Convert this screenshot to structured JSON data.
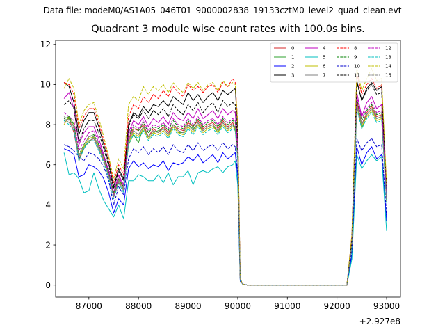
{
  "suptitle": "Data file: modeM0/AS1A05_046T01_9000002838_19133cztM0_level2_quad_clean.evt",
  "chart_data": {
    "type": "line",
    "title": "Quadrant 3 module wise count rates with 100.0s bins.",
    "xlabel": "",
    "ylabel": "",
    "x_offset_label": "+2.927e8",
    "xlim": [
      86330,
      93280
    ],
    "ylim": [
      -0.6,
      12.2
    ],
    "xticks": [
      87000,
      88000,
      89000,
      90000,
      91000,
      92000,
      93000
    ],
    "yticks": [
      0,
      2,
      4,
      6,
      8,
      10,
      12
    ],
    "legend_position": "top-right",
    "x": [
      86500,
      86600,
      86700,
      86800,
      86900,
      87000,
      87100,
      87200,
      87300,
      87400,
      87500,
      87600,
      87700,
      87800,
      87900,
      88000,
      88100,
      88200,
      88300,
      88400,
      88500,
      88600,
      88700,
      88800,
      88900,
      89000,
      89100,
      89200,
      89300,
      89400,
      89500,
      89600,
      89700,
      89800,
      89900,
      89950,
      90000,
      90050,
      90100,
      90200,
      90300,
      90400,
      90500,
      90600,
      90700,
      90800,
      90900,
      91000,
      91100,
      91200,
      91300,
      91400,
      91500,
      91600,
      91700,
      91800,
      91900,
      92000,
      92100,
      92200,
      92300,
      92400,
      92500,
      92600,
      92700,
      92800,
      92900,
      93000
    ],
    "series": [
      {
        "name": "0",
        "color": "#d62728",
        "dash": "solid",
        "values": [
          8.1,
          8.3,
          7.6,
          6.3,
          6.8,
          7.2,
          7.3,
          6.8,
          6.2,
          5.6,
          4.4,
          5.1,
          4.8,
          7.3,
          7.8,
          7.7,
          8.0,
          7.4,
          7.8,
          7.6,
          7.9,
          7.6,
          8.0,
          7.8,
          7.7,
          8.1,
          7.9,
          8.2,
          7.8,
          8.0,
          8.1,
          7.8,
          8.2,
          7.9,
          8.1,
          7.8,
          6.5,
          0.3,
          0.05,
          0.0,
          0.0,
          0.0,
          0.0,
          0.0,
          0.0,
          0.0,
          0.0,
          0.0,
          0.0,
          0.0,
          0.0,
          0.0,
          0.0,
          0.0,
          0.0,
          0.0,
          0.0,
          0.0,
          0.0,
          0.0,
          2.0,
          9.2,
          8.0,
          8.6,
          8.9,
          8.4,
          8.5,
          4.3
        ]
      },
      {
        "name": "1",
        "color": "#2ca02c",
        "dash": "solid",
        "values": [
          8.2,
          8.3,
          7.9,
          6.2,
          6.9,
          7.1,
          7.4,
          6.9,
          6.3,
          5.5,
          4.5,
          5.2,
          4.9,
          7.0,
          7.5,
          7.1,
          7.9,
          7.3,
          7.6,
          7.7,
          7.8,
          7.5,
          7.9,
          7.6,
          7.6,
          8.0,
          7.8,
          8.0,
          7.7,
          7.9,
          8.0,
          7.6,
          8.1,
          7.8,
          8.0,
          7.7,
          6.4,
          0.3,
          0.05,
          0.0,
          0.0,
          0.0,
          0.0,
          0.0,
          0.0,
          0.0,
          0.0,
          0.0,
          0.0,
          0.0,
          0.0,
          0.0,
          0.0,
          0.0,
          0.0,
          0.0,
          0.0,
          0.0,
          0.0,
          0.0,
          2.0,
          9.0,
          7.8,
          8.5,
          8.8,
          8.3,
          8.4,
          4.2
        ]
      },
      {
        "name": "2",
        "color": "#0000ff",
        "dash": "solid",
        "values": [
          6.8,
          6.7,
          6.5,
          5.4,
          5.5,
          6.0,
          5.9,
          5.7,
          5.3,
          4.6,
          3.6,
          4.3,
          4.0,
          5.8,
          6.2,
          5.9,
          6.1,
          5.8,
          6.0,
          5.9,
          6.2,
          5.7,
          6.1,
          6.0,
          6.1,
          6.4,
          6.2,
          6.5,
          6.1,
          6.3,
          6.5,
          6.1,
          6.6,
          6.3,
          6.5,
          6.6,
          5.4,
          0.2,
          0.05,
          0.0,
          0.0,
          0.0,
          0.0,
          0.0,
          0.0,
          0.0,
          0.0,
          0.0,
          0.0,
          0.0,
          0.0,
          0.0,
          0.0,
          0.0,
          0.0,
          0.0,
          0.0,
          0.0,
          0.0,
          0.0,
          1.5,
          6.9,
          6.0,
          6.6,
          6.9,
          6.3,
          6.5,
          3.2
        ]
      },
      {
        "name": "3",
        "color": "#000000",
        "dash": "solid",
        "values": [
          10.1,
          9.9,
          9.1,
          7.5,
          8.2,
          8.6,
          8.6,
          7.9,
          7.0,
          6.1,
          4.9,
          5.8,
          5.3,
          8.0,
          8.6,
          8.4,
          8.9,
          8.6,
          9.0,
          8.9,
          9.2,
          8.9,
          9.4,
          9.2,
          9.0,
          9.6,
          9.2,
          9.5,
          9.1,
          9.4,
          9.6,
          9.2,
          9.7,
          9.5,
          9.7,
          9.8,
          7.8,
          0.3,
          0.05,
          0.0,
          0.0,
          0.0,
          0.0,
          0.0,
          0.0,
          0.0,
          0.0,
          0.0,
          0.0,
          0.0,
          0.0,
          0.0,
          0.0,
          0.0,
          0.0,
          0.0,
          0.0,
          0.0,
          0.0,
          0.0,
          2.4,
          10.2,
          9.2,
          9.8,
          10.1,
          9.7,
          9.9,
          4.8
        ]
      },
      {
        "name": "4",
        "color": "#bf00bf",
        "dash": "solid",
        "values": [
          9.3,
          9.6,
          8.8,
          7.0,
          7.6,
          7.9,
          7.9,
          7.3,
          6.5,
          5.7,
          4.6,
          5.5,
          5.0,
          7.6,
          8.2,
          8.0,
          8.4,
          7.9,
          8.3,
          8.1,
          8.4,
          8.0,
          8.6,
          8.3,
          8.2,
          8.6,
          8.3,
          8.8,
          8.3,
          8.5,
          8.7,
          8.3,
          8.8,
          8.5,
          8.7,
          8.6,
          7.0,
          0.3,
          0.05,
          0.0,
          0.0,
          0.0,
          0.0,
          0.0,
          0.0,
          0.0,
          0.0,
          0.0,
          0.0,
          0.0,
          0.0,
          0.0,
          0.0,
          0.0,
          0.0,
          0.0,
          0.0,
          0.0,
          0.0,
          0.0,
          2.2,
          9.6,
          8.4,
          9.1,
          9.4,
          8.8,
          9.0,
          4.5
        ]
      },
      {
        "name": "5",
        "color": "#00bfbf",
        "dash": "solid",
        "values": [
          6.6,
          5.5,
          5.6,
          5.3,
          4.6,
          4.7,
          5.6,
          4.8,
          4.2,
          3.8,
          3.4,
          4.0,
          3.3,
          5.2,
          5.2,
          5.5,
          5.4,
          5.2,
          5.2,
          5.5,
          5.1,
          5.6,
          5.0,
          5.4,
          5.4,
          5.7,
          5.0,
          5.6,
          5.7,
          5.6,
          5.8,
          5.9,
          5.6,
          5.9,
          6.0,
          6.2,
          5.0,
          0.2,
          0.05,
          0.0,
          0.0,
          0.0,
          0.0,
          0.0,
          0.0,
          0.0,
          0.0,
          0.0,
          0.0,
          0.0,
          0.0,
          0.0,
          0.0,
          0.0,
          0.0,
          0.0,
          0.0,
          0.0,
          0.0,
          0.0,
          1.3,
          6.5,
          5.8,
          6.2,
          6.5,
          6.2,
          6.4,
          2.7
        ]
      },
      {
        "name": "6",
        "color": "#bfbf00",
        "dash": "solid",
        "values": [
          8.0,
          8.4,
          8.0,
          6.4,
          6.9,
          7.3,
          7.4,
          6.9,
          6.3,
          5.5,
          4.5,
          5.3,
          4.8,
          7.1,
          7.6,
          7.4,
          7.8,
          7.3,
          7.6,
          7.5,
          7.7,
          7.4,
          7.9,
          7.6,
          7.5,
          7.9,
          7.6,
          8.0,
          7.6,
          7.8,
          7.9,
          7.6,
          8.0,
          7.7,
          7.9,
          7.8,
          6.3,
          0.3,
          0.05,
          0.0,
          0.0,
          0.0,
          0.0,
          0.0,
          0.0,
          0.0,
          0.0,
          0.0,
          0.0,
          0.0,
          0.0,
          0.0,
          0.0,
          0.0,
          0.0,
          0.0,
          0.0,
          0.0,
          0.0,
          0.0,
          2.0,
          8.9,
          7.9,
          8.4,
          8.7,
          8.2,
          8.3,
          4.1
        ]
      },
      {
        "name": "7",
        "color": "#808080",
        "dash": "solid",
        "values": [
          8.3,
          8.1,
          7.8,
          6.2,
          6.8,
          7.2,
          7.3,
          6.8,
          6.2,
          5.4,
          4.4,
          5.2,
          4.7,
          7.2,
          7.7,
          7.5,
          7.9,
          7.4,
          7.7,
          7.6,
          7.8,
          7.5,
          8.0,
          7.7,
          7.6,
          8.0,
          7.7,
          8.1,
          7.7,
          7.9,
          8.0,
          7.7,
          8.1,
          7.8,
          8.0,
          7.9,
          6.4,
          0.3,
          0.05,
          0.0,
          0.0,
          0.0,
          0.0,
          0.0,
          0.0,
          0.0,
          0.0,
          0.0,
          0.0,
          0.0,
          0.0,
          0.0,
          0.0,
          0.0,
          0.0,
          0.0,
          0.0,
          0.0,
          0.0,
          0.0,
          2.0,
          9.0,
          8.0,
          8.5,
          8.8,
          8.3,
          8.4,
          4.2
        ]
      },
      {
        "name": "8",
        "color": "#ff0000",
        "dash": "dashed",
        "values": [
          10.1,
          10.0,
          9.5,
          7.8,
          8.4,
          8.8,
          8.8,
          8.1,
          7.2,
          6.3,
          5.1,
          6.0,
          5.5,
          8.4,
          9.0,
          8.8,
          9.4,
          9.1,
          9.5,
          9.3,
          9.7,
          9.4,
          9.9,
          9.6,
          9.4,
          10.0,
          9.7,
          9.9,
          9.6,
          9.9,
          10.0,
          9.6,
          10.1,
          9.9,
          10.3,
          10.1,
          8.1,
          0.3,
          0.05,
          0.0,
          0.0,
          0.0,
          0.0,
          0.0,
          0.0,
          0.0,
          0.0,
          0.0,
          0.0,
          0.0,
          0.0,
          0.0,
          0.0,
          0.0,
          0.0,
          0.0,
          0.0,
          0.0,
          0.0,
          0.0,
          2.5,
          10.6,
          9.5,
          10.0,
          10.3,
          9.8,
          10.0,
          4.9
        ]
      },
      {
        "name": "9",
        "color": "#008000",
        "dash": "dashed",
        "values": [
          8.3,
          8.4,
          8.0,
          6.5,
          7.0,
          7.4,
          7.5,
          7.0,
          6.4,
          5.6,
          4.6,
          5.3,
          4.9,
          7.4,
          7.9,
          7.7,
          8.1,
          7.6,
          7.9,
          7.8,
          8.0,
          7.7,
          8.2,
          7.9,
          7.8,
          8.2,
          7.9,
          8.3,
          7.9,
          8.1,
          8.2,
          7.9,
          8.3,
          8.0,
          8.2,
          8.1,
          6.6,
          0.3,
          0.05,
          0.0,
          0.0,
          0.0,
          0.0,
          0.0,
          0.0,
          0.0,
          0.0,
          0.0,
          0.0,
          0.0,
          0.0,
          0.0,
          0.0,
          0.0,
          0.0,
          0.0,
          0.0,
          0.0,
          0.0,
          0.0,
          2.1,
          9.3,
          8.2,
          8.7,
          9.0,
          8.5,
          8.6,
          4.3
        ]
      },
      {
        "name": "10",
        "color": "#0000cc",
        "dash": "dashed",
        "values": [
          7.0,
          6.9,
          6.7,
          6.4,
          6.2,
          6.6,
          6.5,
          6.3,
          5.9,
          5.2,
          4.0,
          4.9,
          4.5,
          6.3,
          6.8,
          6.6,
          6.9,
          6.5,
          6.8,
          6.6,
          6.9,
          6.5,
          7.0,
          6.7,
          6.6,
          7.0,
          6.7,
          7.1,
          6.7,
          6.9,
          7.0,
          6.7,
          7.1,
          6.8,
          7.0,
          6.9,
          5.6,
          0.2,
          0.05,
          0.0,
          0.0,
          0.0,
          0.0,
          0.0,
          0.0,
          0.0,
          0.0,
          0.0,
          0.0,
          0.0,
          0.0,
          0.0,
          0.0,
          0.0,
          0.0,
          0.0,
          0.0,
          0.0,
          0.0,
          0.0,
          1.7,
          7.3,
          6.7,
          7.1,
          7.3,
          6.9,
          7.0,
          3.5
        ]
      },
      {
        "name": "11",
        "color": "#000000",
        "dash": "dashed",
        "values": [
          9.0,
          9.2,
          8.8,
          7.1,
          7.8,
          8.2,
          8.2,
          7.6,
          6.8,
          5.9,
          4.8,
          5.7,
          5.2,
          7.9,
          8.5,
          8.3,
          8.7,
          8.3,
          8.7,
          8.5,
          8.8,
          8.4,
          9.0,
          8.7,
          8.5,
          9.0,
          8.7,
          9.1,
          8.6,
          8.9,
          9.1,
          8.6,
          9.2,
          8.9,
          9.1,
          9.0,
          7.3,
          0.3,
          0.05,
          0.0,
          0.0,
          0.0,
          0.0,
          0.0,
          0.0,
          0.0,
          0.0,
          0.0,
          0.0,
          0.0,
          0.0,
          0.0,
          0.0,
          0.0,
          0.0,
          0.0,
          0.0,
          0.0,
          0.0,
          0.0,
          2.3,
          10.1,
          9.2,
          9.7,
          10.0,
          9.5,
          9.6,
          4.7
        ]
      },
      {
        "name": "12",
        "color": "#bf00bf",
        "dash": "dashed",
        "values": [
          8.6,
          8.4,
          8.2,
          6.7,
          7.2,
          7.6,
          7.7,
          7.1,
          6.4,
          5.6,
          4.5,
          5.4,
          4.9,
          7.5,
          8.0,
          7.8,
          8.2,
          7.7,
          8.0,
          7.9,
          8.1,
          7.8,
          8.3,
          8.0,
          7.9,
          8.3,
          8.0,
          8.4,
          8.0,
          8.2,
          8.3,
          8.0,
          8.4,
          8.1,
          8.3,
          8.2,
          6.7,
          0.3,
          0.05,
          0.0,
          0.0,
          0.0,
          0.0,
          0.0,
          0.0,
          0.0,
          0.0,
          0.0,
          0.0,
          0.0,
          0.0,
          0.0,
          0.0,
          0.0,
          0.0,
          0.0,
          0.0,
          0.0,
          0.0,
          0.0,
          2.1,
          9.4,
          8.3,
          8.8,
          9.1,
          8.6,
          8.7,
          4.4
        ]
      },
      {
        "name": "13",
        "color": "#00bfbf",
        "dash": "dashed",
        "values": [
          8.2,
          8.0,
          7.7,
          6.2,
          6.8,
          7.2,
          7.2,
          6.7,
          6.1,
          5.3,
          4.3,
          5.1,
          4.6,
          7.0,
          7.5,
          7.3,
          7.7,
          7.2,
          7.5,
          7.4,
          7.6,
          7.3,
          7.8,
          7.5,
          7.4,
          7.8,
          7.5,
          7.9,
          7.5,
          7.7,
          7.8,
          7.5,
          7.9,
          7.6,
          7.8,
          7.7,
          6.2,
          0.3,
          0.05,
          0.0,
          0.0,
          0.0,
          0.0,
          0.0,
          0.0,
          0.0,
          0.0,
          0.0,
          0.0,
          0.0,
          0.0,
          0.0,
          0.0,
          0.0,
          0.0,
          0.0,
          0.0,
          0.0,
          0.0,
          0.0,
          1.9,
          8.8,
          7.8,
          8.3,
          8.6,
          8.1,
          8.2,
          4.1
        ]
      },
      {
        "name": "14",
        "color": "#bfbf00",
        "dash": "dashed",
        "values": [
          9.8,
          10.3,
          9.8,
          8.0,
          8.7,
          9.0,
          9.1,
          8.3,
          7.4,
          6.4,
          5.3,
          6.3,
          5.8,
          9.0,
          9.4,
          9.2,
          9.9,
          9.5,
          9.9,
          9.7,
          10.0,
          9.6,
          10.1,
          9.8,
          9.6,
          10.1,
          9.8,
          10.1,
          9.7,
          10.0,
          10.1,
          9.7,
          10.2,
          9.9,
          10.1,
          10.0,
          8.1,
          0.3,
          0.05,
          0.0,
          0.0,
          0.0,
          0.0,
          0.0,
          0.0,
          0.0,
          0.0,
          0.0,
          0.0,
          0.0,
          0.0,
          0.0,
          0.0,
          0.0,
          0.0,
          0.0,
          0.0,
          0.0,
          0.0,
          0.0,
          2.5,
          10.8,
          9.7,
          10.3,
          10.8,
          10.2,
          10.3,
          5.0
        ]
      },
      {
        "name": "15",
        "color": "#808080",
        "dash": "dashed",
        "values": [
          8.4,
          8.2,
          7.9,
          6.4,
          7.0,
          7.4,
          7.4,
          6.9,
          6.3,
          5.5,
          4.4,
          5.2,
          4.8,
          7.2,
          7.7,
          7.5,
          7.9,
          7.4,
          7.7,
          7.6,
          7.8,
          7.5,
          8.0,
          7.7,
          7.6,
          8.0,
          7.7,
          8.1,
          7.7,
          7.9,
          8.0,
          7.7,
          8.1,
          7.8,
          8.0,
          7.9,
          6.4,
          0.3,
          0.05,
          0.0,
          0.0,
          0.0,
          0.0,
          0.0,
          0.0,
          0.0,
          0.0,
          0.0,
          0.0,
          0.0,
          0.0,
          0.0,
          0.0,
          0.0,
          0.0,
          0.0,
          0.0,
          0.0,
          0.0,
          0.0,
          2.0,
          9.0,
          8.0,
          8.5,
          8.8,
          8.3,
          8.4,
          4.2
        ]
      }
    ]
  }
}
